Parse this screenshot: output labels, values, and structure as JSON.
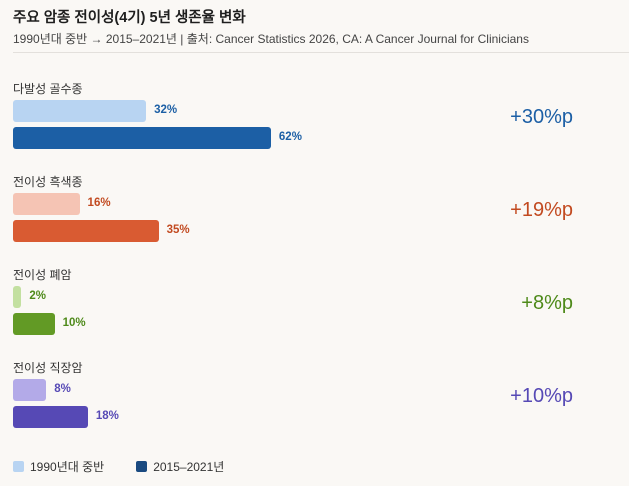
{
  "chart_data": {
    "type": "bar",
    "orientation": "horizontal",
    "title": "주요 암종 전이성(4기) 5년 생존율 변화",
    "subtitle": "1990년대 중반 → 2015–2021년 | 출처: Cancer Statistics 2026, CA: A Cancer Journal for Clinicians",
    "categories": [
      "다발성 골수종",
      "전이성 흑색종",
      "전이성 폐암",
      "전이성 직장암"
    ],
    "series": [
      {
        "name": "1990년대 중반",
        "values": [
          32,
          16,
          2,
          8
        ]
      },
      {
        "name": "2015–2021년",
        "values": [
          62,
          35,
          10,
          18
        ]
      }
    ],
    "value_labels": [
      [
        "32%",
        "62%"
      ],
      [
        "16%",
        "35%"
      ],
      [
        "2%",
        "10%"
      ],
      [
        "8%",
        "18%"
      ]
    ],
    "deltas": [
      "+30%p",
      "+19%p",
      "+8%p",
      "+10%p"
    ],
    "unit": "%",
    "grid": false,
    "legend_position": "bottom-left",
    "colors": [
      {
        "light": "#b8d4f2",
        "dark": "#1c5fa5",
        "text": "#1c5fa5"
      },
      {
        "light": "#f5c4b4",
        "dark": "#d95b32",
        "text": "#c24a20"
      },
      {
        "light": "#c3e0a0",
        "dark": "#629a25",
        "text": "#4e8a1a"
      },
      {
        "light": "#b3aae8",
        "dark": "#5649b5",
        "text": "#5649b5"
      }
    ],
    "legend_colors": [
      "#b8d4f2",
      "#1a4a80"
    ]
  }
}
